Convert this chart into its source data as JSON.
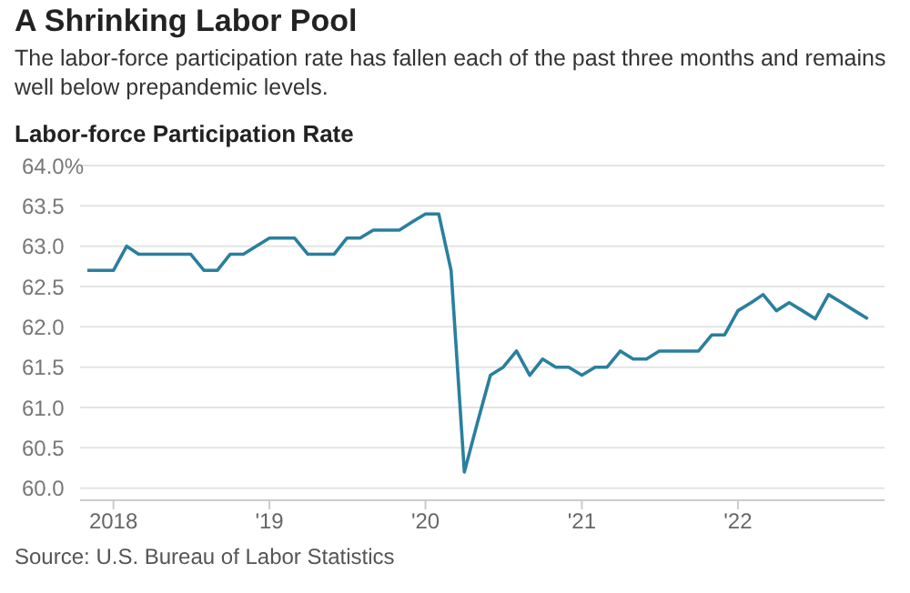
{
  "chart_data": {
    "type": "line",
    "title": "A Shrinking Labor Pool",
    "subtitle": "The labor-force participation rate has fallen each of the past three months and remains well below prepandemic levels.",
    "ylabel": "Labor-force Participation Rate",
    "annotations": [
      "Source: U.S. Bureau of Labor Statistics"
    ],
    "x": [
      "2017-11",
      "2017-12",
      "2018-01",
      "2018-02",
      "2018-03",
      "2018-04",
      "2018-05",
      "2018-06",
      "2018-07",
      "2018-08",
      "2018-09",
      "2018-10",
      "2018-11",
      "2018-12",
      "2019-01",
      "2019-02",
      "2019-03",
      "2019-04",
      "2019-05",
      "2019-06",
      "2019-07",
      "2019-08",
      "2019-09",
      "2019-10",
      "2019-11",
      "2019-12",
      "2020-01",
      "2020-02",
      "2020-03",
      "2020-04",
      "2020-05",
      "2020-06",
      "2020-07",
      "2020-08",
      "2020-09",
      "2020-10",
      "2020-11",
      "2020-12",
      "2021-01",
      "2021-02",
      "2021-03",
      "2021-04",
      "2021-05",
      "2021-06",
      "2021-07",
      "2021-08",
      "2021-09",
      "2021-10",
      "2021-11",
      "2021-12",
      "2022-01",
      "2022-02",
      "2022-03",
      "2022-04",
      "2022-05",
      "2022-06",
      "2022-07",
      "2022-08",
      "2022-09",
      "2022-10",
      "2022-11"
    ],
    "series": [
      {
        "color": "#2a7f9e",
        "values": [
          62.7,
          62.7,
          62.7,
          63.0,
          62.9,
          62.9,
          62.9,
          62.9,
          62.9,
          62.7,
          62.7,
          62.9,
          62.9,
          63.0,
          63.1,
          63.1,
          63.1,
          62.9,
          62.9,
          62.9,
          63.1,
          63.1,
          63.2,
          63.2,
          63.2,
          63.3,
          63.4,
          63.4,
          62.7,
          60.2,
          60.8,
          61.4,
          61.5,
          61.7,
          61.4,
          61.6,
          61.5,
          61.5,
          61.4,
          61.5,
          61.5,
          61.7,
          61.6,
          61.6,
          61.7,
          61.7,
          61.7,
          61.7,
          61.9,
          61.9,
          62.2,
          62.3,
          62.4,
          62.2,
          62.3,
          62.2,
          62.1,
          62.4,
          62.3,
          62.2,
          62.1
        ]
      }
    ],
    "xlim": [
      "2017-10-15",
      "2022-12-10"
    ],
    "xticks": [
      {
        "value": "2018-01",
        "label": "2018"
      },
      {
        "value": "2019-01",
        "label": "'19"
      },
      {
        "value": "2020-01",
        "label": "'20"
      },
      {
        "value": "2021-01",
        "label": "'21"
      },
      {
        "value": "2022-01",
        "label": "'22"
      }
    ],
    "ylim": [
      59.85,
      64.0
    ],
    "yticks": [
      {
        "value": 60.0,
        "label": "60.0"
      },
      {
        "value": 60.5,
        "label": "60.5"
      },
      {
        "value": 61.0,
        "label": "61.0"
      },
      {
        "value": 61.5,
        "label": "61.5"
      },
      {
        "value": 62.0,
        "label": "62.0"
      },
      {
        "value": 62.5,
        "label": "62.5"
      },
      {
        "value": 63.0,
        "label": "63.0"
      },
      {
        "value": 63.5,
        "label": "63.5"
      },
      {
        "value": 64.0,
        "label": "64.0%"
      }
    ],
    "grid": "y",
    "legend": false,
    "marker": "none",
    "line_style": "solid"
  }
}
